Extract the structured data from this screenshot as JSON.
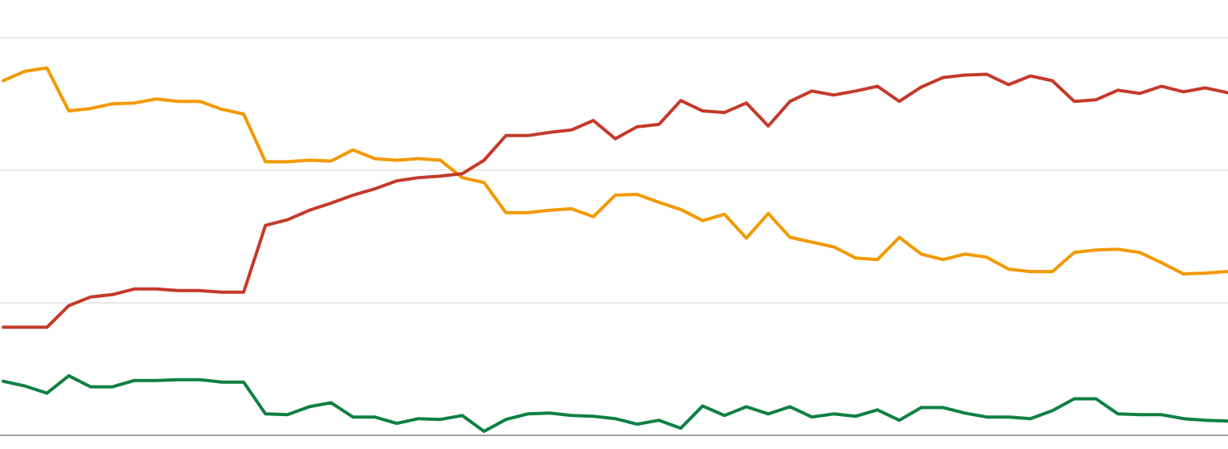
{
  "chart_data": {
    "type": "line",
    "title": "",
    "xlabel": "",
    "ylabel": "",
    "ylim": [
      0,
      100
    ],
    "gridlines": [
      33.3,
      66.7,
      100
    ],
    "grid": true,
    "x": [
      1,
      2,
      3,
      4,
      5,
      6,
      7,
      8,
      9,
      10,
      11,
      12,
      13,
      14,
      15,
      16,
      17,
      18,
      19,
      20,
      21,
      22,
      23,
      24,
      25,
      26,
      27,
      28,
      29,
      30,
      31,
      32,
      33,
      34,
      35,
      36,
      37,
      38,
      39,
      40,
      41,
      42,
      43,
      44,
      45,
      46,
      47,
      48,
      49,
      50,
      51,
      52,
      53,
      54,
      55,
      56,
      57
    ],
    "series": [
      {
        "color": "#f29900",
        "values": [
          89.2,
          91.6,
          92.4,
          81.6,
          82.2,
          83.4,
          83.6,
          84.6,
          84.0,
          84.0,
          82.0,
          80.8,
          68.8,
          68.8,
          69.2,
          69.0,
          71.8,
          69.6,
          69.2,
          69.6,
          69.2,
          64.8,
          63.6,
          56.0,
          56.0,
          56.6,
          57.0,
          55.0,
          60.4,
          60.6,
          58.6,
          56.8,
          54.0,
          55.6,
          49.6,
          55.8,
          49.8,
          48.6,
          47.4,
          44.6,
          44.2,
          49.8,
          45.6,
          44.2,
          45.6,
          44.8,
          41.8,
          41.2,
          41.2,
          46.0,
          46.6,
          46.8,
          46.0,
          43.4,
          40.6,
          40.8,
          41.2
        ]
      },
      {
        "color": "#c5392a",
        "values": [
          27.2,
          27.2,
          27.2,
          32.6,
          34.8,
          35.4,
          36.8,
          36.8,
          36.4,
          36.4,
          36.0,
          36.0,
          52.8,
          54.2,
          56.6,
          58.4,
          60.4,
          62.0,
          64.0,
          64.8,
          65.2,
          65.8,
          69.2,
          75.4,
          75.4,
          76.2,
          76.8,
          79.2,
          74.6,
          77.6,
          78.2,
          84.2,
          81.6,
          81.2,
          83.6,
          77.8,
          84.0,
          86.6,
          85.6,
          86.6,
          87.8,
          84.0,
          87.6,
          90.0,
          90.6,
          90.8,
          88.2,
          90.4,
          89.2,
          84.0,
          84.4,
          86.8,
          86.0,
          87.8,
          86.4,
          87.4,
          86.2
        ]
      },
      {
        "color": "#0f8043",
        "values": [
          13.6,
          12.4,
          10.6,
          15.0,
          12.2,
          12.2,
          13.8,
          13.8,
          14.0,
          14.0,
          13.4,
          13.4,
          5.4,
          5.2,
          7.2,
          8.2,
          4.6,
          4.6,
          3.0,
          4.2,
          4.0,
          5.0,
          1.0,
          4.0,
          5.4,
          5.6,
          5.0,
          4.8,
          4.2,
          2.8,
          3.8,
          1.8,
          7.4,
          5.0,
          7.2,
          5.4,
          7.2,
          4.6,
          5.4,
          4.8,
          6.4,
          3.8,
          7.0,
          7.0,
          5.6,
          4.6,
          4.6,
          4.2,
          6.2,
          9.2,
          9.2,
          5.4,
          5.2,
          5.2,
          4.2,
          3.8,
          3.6
        ]
      }
    ]
  }
}
